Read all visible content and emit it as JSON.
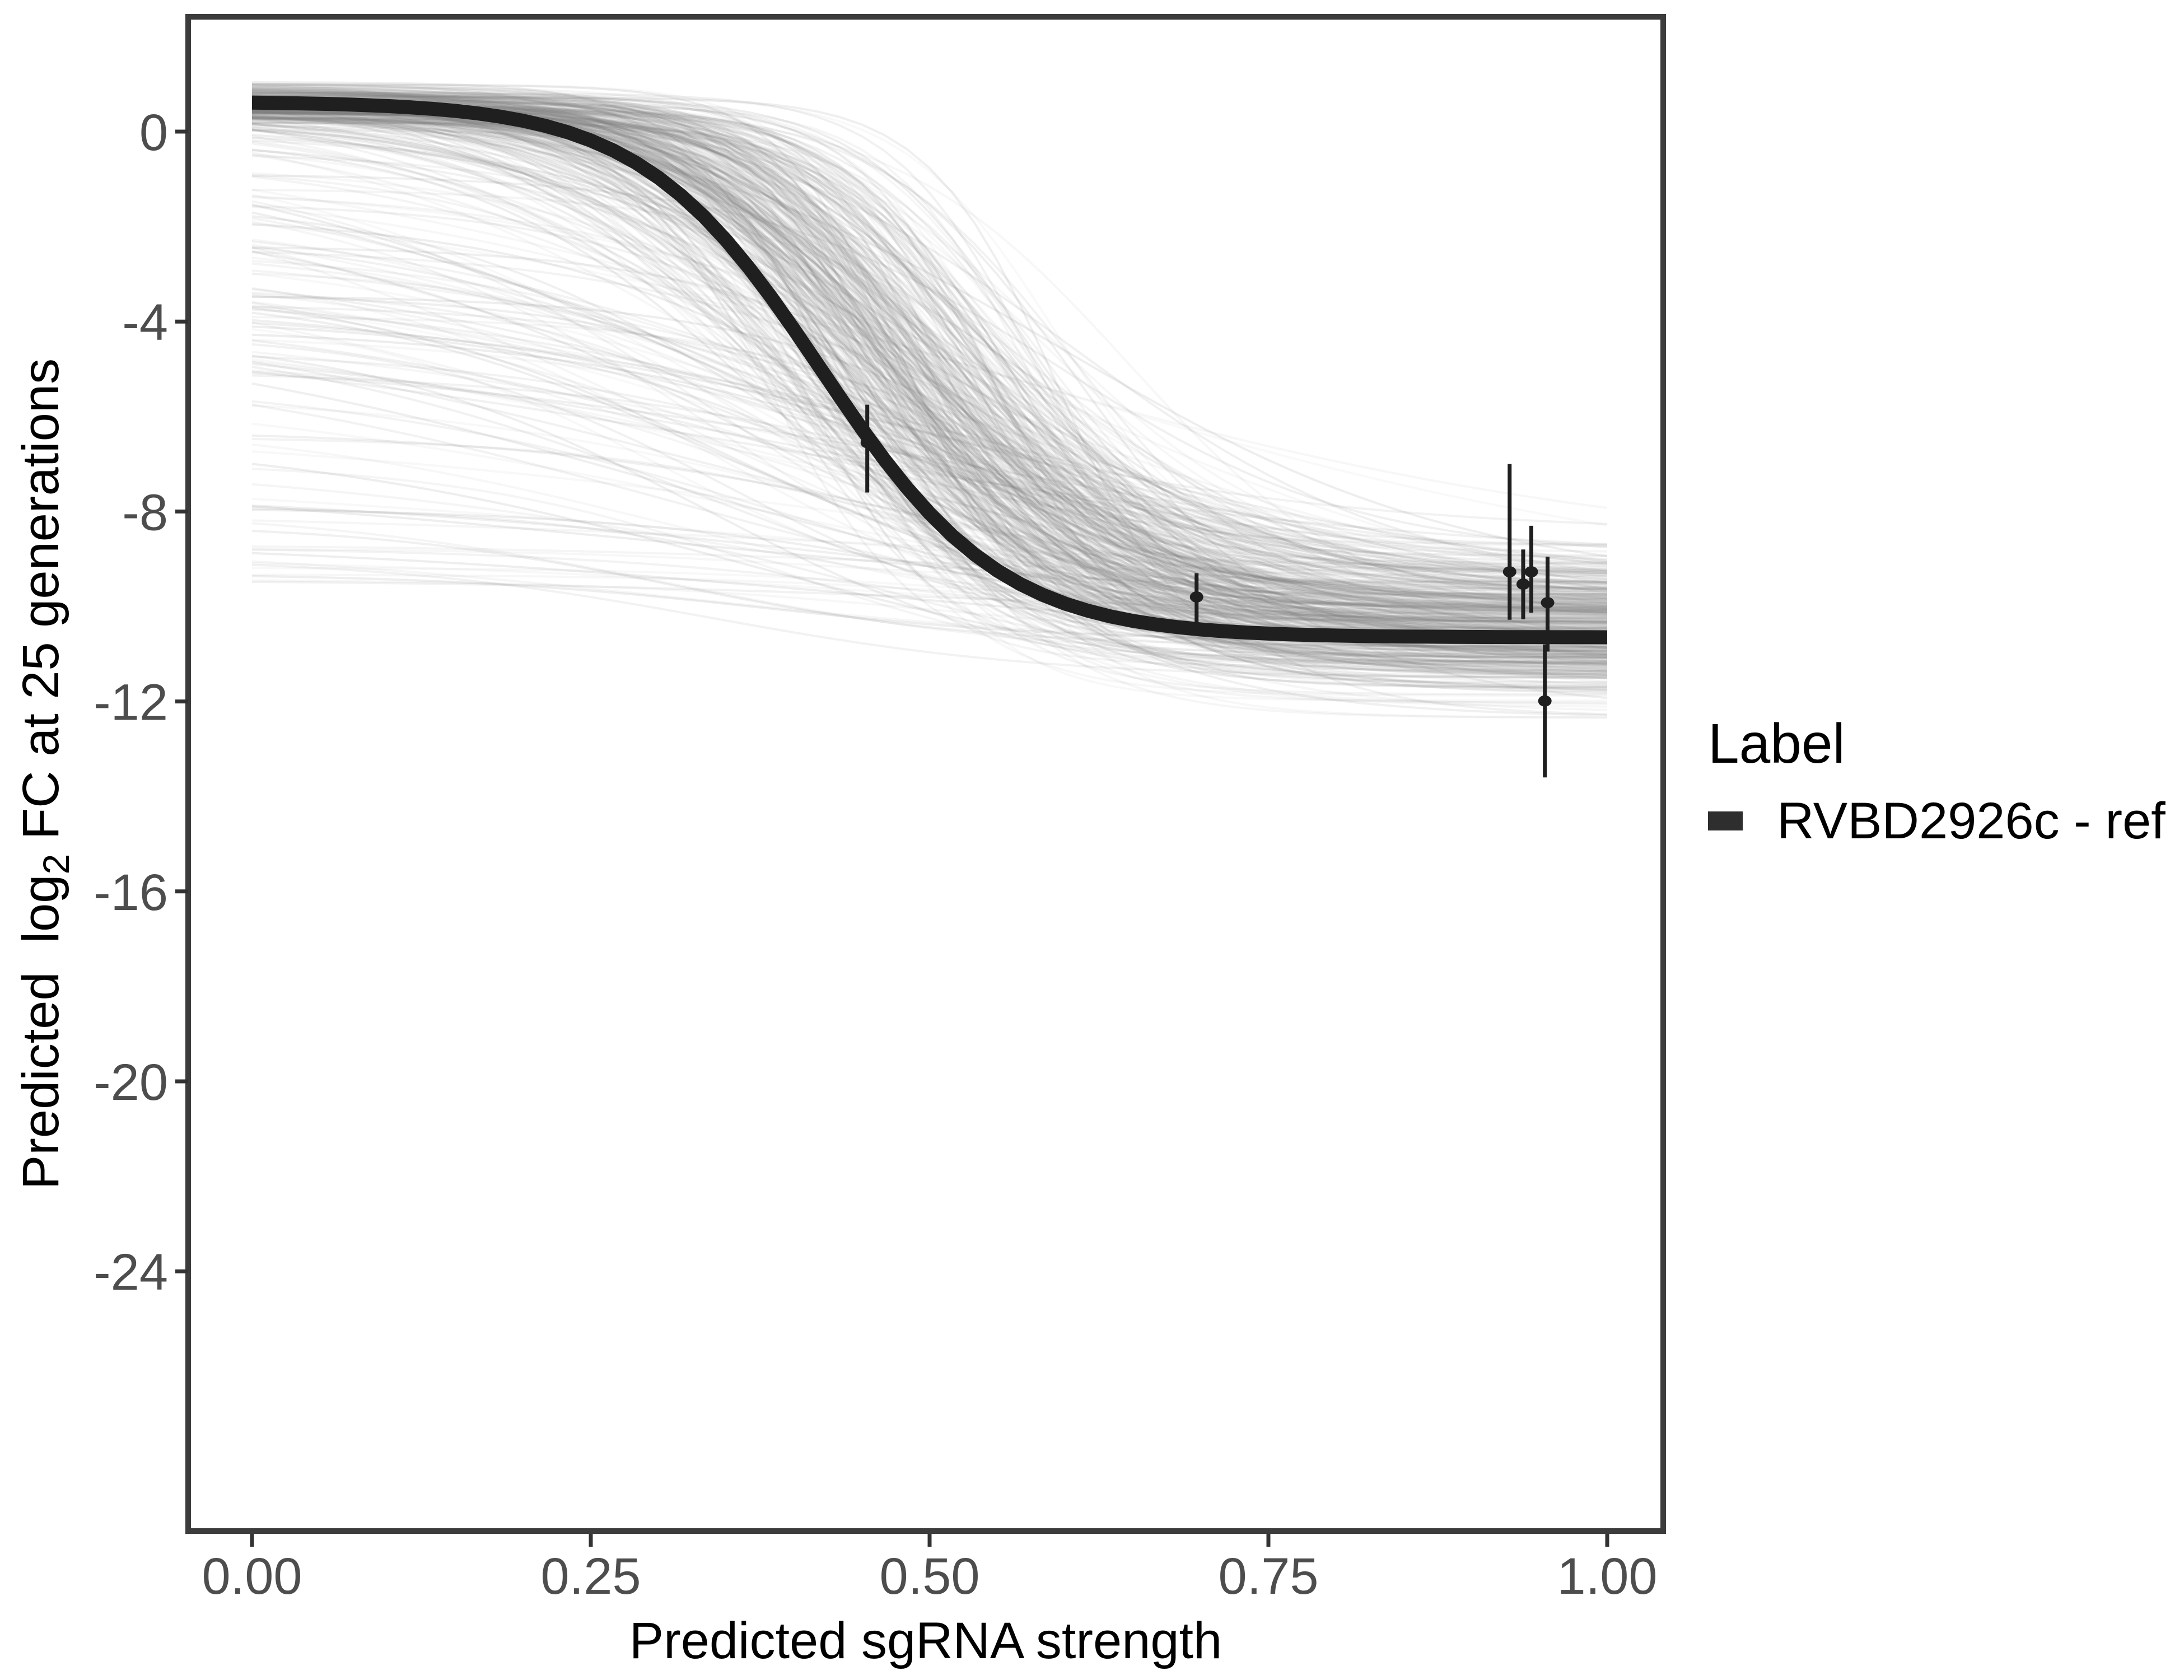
{
  "axes": {
    "x": {
      "title": "Predicted sgRNA strength",
      "tick_labels": [
        "0.00",
        "0.25",
        "0.50",
        "0.75",
        "1.00"
      ],
      "tick_color": "#4d4d4d",
      "title_color": "#000000"
    },
    "y": {
      "title": "Predicted log2 FC at 25 generations",
      "title_pre": "Predicted  log",
      "title_sub": "2",
      "title_post": " FC at 25 generations",
      "tick_labels": [
        "0",
        "-4",
        "-8",
        "-12",
        "-16",
        "-20",
        "-24"
      ],
      "tick_color": "#4d4d4d",
      "title_color": "#000000"
    }
  },
  "legend": {
    "title": "Label",
    "entries": [
      {
        "label": "RVBD2926c - ref",
        "swatch_color": "#2e2e2e"
      }
    ]
  },
  "colors": {
    "panel_border": "#3c3c3c",
    "tick_mark": "#333333",
    "tick_label": "#4d4d4d",
    "reference_curve": "#1f1f1f",
    "posterior_draw": "#7f7f7f",
    "point": "#1f1f1f",
    "background": "#ffffff"
  },
  "chart_data": {
    "type": "line",
    "title": "",
    "xlabel": "Predicted sgRNA strength",
    "ylabel": "Predicted log2 FC at 25 generations",
    "x_domain": [
      0,
      1
    ],
    "y_domain": [
      -28,
      1
    ],
    "x_ticks": [
      0,
      0.25,
      0.5,
      0.75,
      1
    ],
    "x_tick_labels": [
      "0.00",
      "0.25",
      "0.50",
      "0.75",
      "1.00"
    ],
    "y_ticks": [
      0,
      -4,
      -8,
      -12,
      -16,
      -20,
      -24
    ],
    "y_tick_labels": [
      "0",
      "-4",
      "-8",
      "-12",
      "-16",
      "-20",
      "-24"
    ],
    "grid": false,
    "legend_position": "right",
    "legend_title": "Label",
    "series": [
      {
        "name": "RVBD2926c - ref",
        "type": "sigmoid-curve"
      }
    ],
    "ref_curve": {
      "label": "RVBD2926c - ref",
      "color": "#1f1f1f",
      "logistic": {
        "top": 0.63,
        "bottom": -10.65,
        "midpoint": 0.42,
        "steepness": 15
      },
      "points": [
        [
          0.0,
          0.61
        ],
        [
          0.1,
          0.54
        ],
        [
          0.2,
          0.23
        ],
        [
          0.25,
          -0.19
        ],
        [
          0.3,
          -0.97
        ],
        [
          0.35,
          -2.29
        ],
        [
          0.4,
          -4.17
        ],
        [
          0.45,
          -6.26
        ],
        [
          0.5,
          -8.04
        ],
        [
          0.55,
          -9.25
        ],
        [
          0.6,
          -9.94
        ],
        [
          0.65,
          -10.3
        ],
        [
          0.7,
          -10.48
        ],
        [
          0.8,
          -10.61
        ],
        [
          0.9,
          -10.64
        ],
        [
          1.0,
          -10.65
        ]
      ]
    },
    "posterior_draws": {
      "description": "translucent grey sigmoid posterior-draw curves forming a band around the reference curve plus a fan of shallower curves",
      "count": 430,
      "seed": 42,
      "color": "#7f7f7f",
      "band_fraction": 0.72,
      "band": {
        "top_mean": 0.6,
        "top_sd": 0.22,
        "midpoint_mean": 0.48,
        "midpoint_sd": 0.055,
        "steepness_mean": 13.5,
        "steepness_sd": 3.5,
        "bottom_mean": -10.5,
        "bottom_sd": 0.8
      },
      "fan": {
        "top_min": -9.6,
        "top_max": 0.3,
        "midpoint_min": 0.3,
        "midpoint_max": 0.6,
        "steepness_min": 3.5,
        "steepness_max": 9.5,
        "bottom_mean": -10.45,
        "bottom_sd": 0.9
      }
    },
    "observed_points": [
      {
        "x": 0.454,
        "y": -6.55,
        "ymin": -7.6,
        "ymax": -5.75
      },
      {
        "x": 0.697,
        "y": -9.8,
        "ymin": -10.35,
        "ymax": -9.3
      },
      {
        "x": 0.928,
        "y": -9.27,
        "ymin": -10.28,
        "ymax": -7.0
      },
      {
        "x": 0.938,
        "y": -9.53,
        "ymin": -10.27,
        "ymax": -8.8
      },
      {
        "x": 0.944,
        "y": -9.27,
        "ymin": -10.13,
        "ymax": -8.3
      },
      {
        "x": 0.956,
        "y": -9.92,
        "ymin": -10.95,
        "ymax": -8.95
      },
      {
        "x": 0.954,
        "y": -11.99,
        "ymin": -13.6,
        "ymax": -10.8
      }
    ]
  }
}
